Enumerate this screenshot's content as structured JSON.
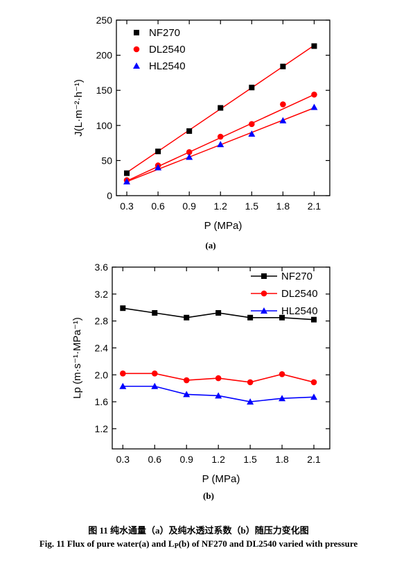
{
  "chart_data": [
    {
      "type": "scatter",
      "panel": "(a)",
      "xlabel": "P (MPa)",
      "ylabel": "J(L·m⁻²·h⁻¹)",
      "xlim": [
        0.2,
        2.25
      ],
      "ylim": [
        0,
        250
      ],
      "xticks": [
        "0.3",
        "0.6",
        "0.9",
        "1.2",
        "1.5",
        "1.8",
        "2.1"
      ],
      "yticks": [
        "0",
        "50",
        "100",
        "150",
        "200",
        "250"
      ],
      "legend_position": "top-left",
      "fit_lines": true,
      "series": [
        {
          "name": "NF270",
          "marker": "square",
          "color": "#000000",
          "x": [
            0.3,
            0.6,
            0.9,
            1.2,
            1.5,
            1.8,
            2.1
          ],
          "y": [
            32,
            63,
            92,
            125,
            154,
            184,
            213
          ],
          "fit": [
            [
              0.3,
              33
            ],
            [
              2.1,
              214
            ]
          ]
        },
        {
          "name": "DL2540",
          "marker": "circle",
          "color": "#ff0000",
          "x": [
            0.3,
            0.6,
            0.9,
            1.2,
            1.5,
            1.8,
            2.1
          ],
          "y": [
            22,
            43,
            62,
            84,
            102,
            130,
            144
          ],
          "fit": [
            [
              0.3,
              21
            ],
            [
              2.1,
              144
            ]
          ]
        },
        {
          "name": "HL2540",
          "marker": "triangle",
          "color": "#0000ff",
          "x": [
            0.3,
            0.6,
            0.9,
            1.2,
            1.5,
            1.8,
            2.1
          ],
          "y": [
            20,
            40,
            55,
            73,
            88,
            107,
            126
          ],
          "fit": [
            [
              0.3,
              20
            ],
            [
              2.1,
              125
            ]
          ]
        }
      ],
      "fit_color": "#ff0000"
    },
    {
      "type": "line",
      "panel": "(b)",
      "xlabel": "P (MPa)",
      "ylabel": "Lp (m·s⁻¹·MPa⁻¹)",
      "xlim": [
        0.2,
        2.25
      ],
      "ylim": [
        0.9,
        3.6
      ],
      "xticks": [
        "0.3",
        "0.6",
        "0.9",
        "1.2",
        "1.5",
        "1.8",
        "2.1"
      ],
      "yticks": [
        "1.2",
        "1.6",
        "2.0",
        "2.4",
        "2.8",
        "3.2",
        "3.6"
      ],
      "legend_position": "top-right",
      "series": [
        {
          "name": "NF270",
          "marker": "square",
          "color": "#000000",
          "x": [
            0.3,
            0.6,
            0.9,
            1.2,
            1.5,
            1.8,
            2.1
          ],
          "y": [
            2.99,
            2.92,
            2.85,
            2.92,
            2.85,
            2.85,
            2.82
          ]
        },
        {
          "name": "DL2540",
          "marker": "circle",
          "color": "#ff0000",
          "x": [
            0.3,
            0.6,
            0.9,
            1.2,
            1.5,
            1.8,
            2.1
          ],
          "y": [
            2.02,
            2.02,
            1.92,
            1.95,
            1.89,
            2.01,
            1.89
          ]
        },
        {
          "name": "HL2540",
          "marker": "triangle",
          "color": "#0000ff",
          "x": [
            0.3,
            0.6,
            0.9,
            1.2,
            1.5,
            1.8,
            2.1
          ],
          "y": [
            1.83,
            1.83,
            1.71,
            1.69,
            1.6,
            1.65,
            1.67
          ]
        }
      ]
    }
  ],
  "captions": {
    "cn": "图 11 纯水通量（a）及纯水透过系数（b）随压力变化图",
    "en_prefix": "Fig. 11    Flux of pure water(a) and L",
    "en_sub": "P",
    "en_suffix": "(b) of NF270 and DL2540 varied with pressure"
  }
}
